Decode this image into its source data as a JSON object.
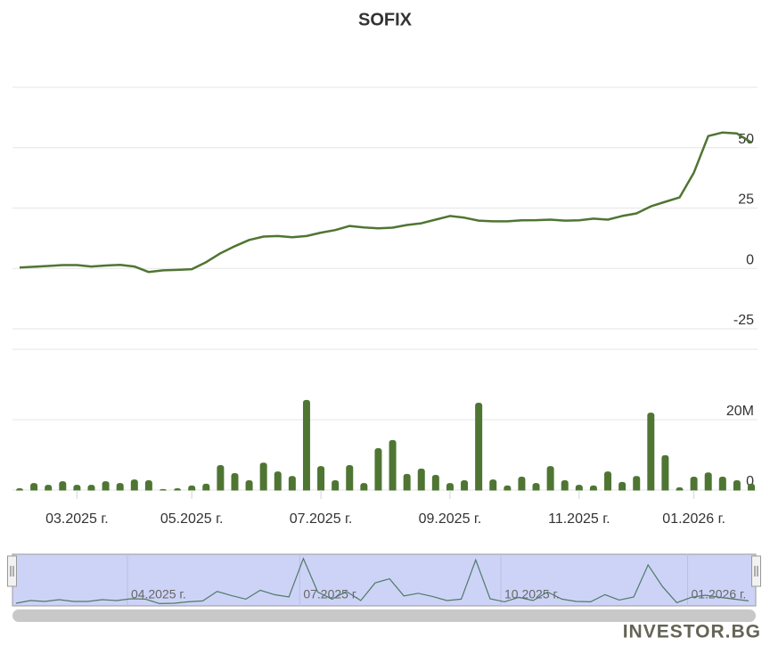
{
  "chart_data": [
    {
      "type": "line",
      "title": "SOFIX",
      "color": "#4f7533",
      "values": [
        0.4,
        0.7,
        1,
        1.4,
        1.4,
        0.8,
        1.2,
        1.5,
        0.8,
        -1.5,
        -0.8,
        -0.6,
        -0.3,
        2.6,
        6.3,
        9.2,
        11.8,
        13.2,
        13.4,
        12.9,
        13.4,
        14.8,
        15.9,
        17.6,
        17,
        16.6,
        16.9,
        18,
        18.7,
        20.2,
        21.7,
        21,
        19.8,
        19.5,
        19.5,
        19.9,
        20,
        20.2,
        19.8,
        19.9,
        20.6,
        20.2,
        21.7,
        22.8,
        25.7,
        27.6,
        29.4,
        39.7,
        54.8,
        56.3,
        55.9,
        52.2
      ],
      "ylim": [
        -25,
        75
      ],
      "yticks": [
        -25,
        0,
        25,
        50
      ],
      "grid": true
    },
    {
      "type": "bar",
      "color": "#4f7533",
      "categories": [
        null,
        null,
        null,
        null,
        "03.2025 г.",
        null,
        null,
        null,
        null,
        null,
        null,
        null,
        "05.2025 г.",
        null,
        null,
        null,
        null,
        null,
        null,
        null,
        null,
        "07.2025 г.",
        null,
        null,
        null,
        null,
        null,
        null,
        null,
        null,
        "09.2025 г.",
        null,
        null,
        null,
        null,
        null,
        null,
        null,
        null,
        "11.2025 г.",
        null,
        null,
        null,
        null,
        null,
        null,
        null,
        "01.2026 г.",
        null,
        null,
        null,
        null
      ],
      "values": [
        500000,
        2000000,
        1500000,
        2500000,
        1500000,
        1500000,
        2500000,
        2000000,
        3000000,
        2800000,
        300000,
        500000,
        1300000,
        1800000,
        7100000,
        4800000,
        2800000,
        7800000,
        5300000,
        4000000,
        25600000,
        6800000,
        2800000,
        7100000,
        2000000,
        11900000,
        14200000,
        4600000,
        6100000,
        4300000,
        2000000,
        2800000,
        24800000,
        3000000,
        1300000,
        3800000,
        2000000,
        6800000,
        2800000,
        1500000,
        1300000,
        5300000,
        2300000,
        4000000,
        22000000,
        9900000,
        800000,
        3800000,
        5000000,
        3800000,
        2800000,
        1800000
      ],
      "ylim": [
        0,
        40000000
      ],
      "yticks": [
        0,
        {
          "value": 20000000,
          "label": "20M"
        }
      ],
      "grid": true
    }
  ],
  "navigator": {
    "categories": [
      null,
      null,
      null,
      null,
      null,
      null,
      null,
      null,
      "04.2025 г.",
      null,
      null,
      null,
      null,
      null,
      null,
      null,
      null,
      null,
      null,
      null,
      "07.2025 г.",
      null,
      null,
      null,
      null,
      null,
      null,
      null,
      null,
      null,
      null,
      null,
      null,
      null,
      "10.2025 г.",
      null,
      null,
      null,
      null,
      null,
      null,
      null,
      null,
      null,
      null,
      null,
      null,
      "01.2026 г.",
      null,
      null,
      null,
      null
    ]
  },
  "watermark": "INVESTOR.BG"
}
